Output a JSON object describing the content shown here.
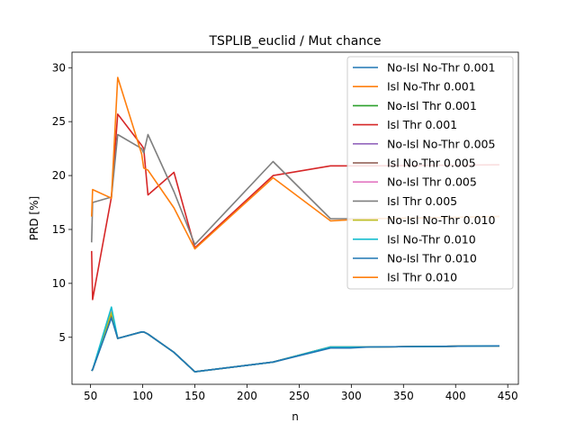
{
  "chart_data": {
    "type": "line",
    "title": "TSPLIB_euclid / Mut chance",
    "xlabel": "n",
    "ylabel": "PRD [%]",
    "xlim": [
      32.2,
      460.2
    ],
    "ylim": [
      0.64,
      31.44
    ],
    "xticks": [
      50,
      100,
      150,
      200,
      250,
      300,
      350,
      400,
      450
    ],
    "yticks": [
      5,
      10,
      15,
      20,
      25,
      30
    ],
    "grid": false,
    "legend_position": "top-right",
    "series": [
      {
        "name": "No-Isl No-Thr 0.001",
        "color": "#1f77b4",
        "x": [
          51,
          52,
          70,
          76,
          99,
          101,
          105,
          130,
          150,
          225,
          280,
          299,
          318,
          442
        ],
        "y": [
          1.9,
          2.0,
          7.0,
          4.9,
          5.5,
          5.5,
          5.3,
          3.6,
          1.8,
          2.7,
          4.1,
          4.1,
          4.1,
          4.2
        ]
      },
      {
        "name": "Isl No-Thr 0.001",
        "color": "#ff7f0e",
        "x": [
          51,
          52,
          70,
          76,
          99,
          101,
          105,
          130,
          150,
          225,
          280,
          299,
          318,
          442
        ],
        "y": [
          1.9,
          2.0,
          6.9,
          4.9,
          5.5,
          5.5,
          5.3,
          3.6,
          1.8,
          2.7,
          4.1,
          4.1,
          4.1,
          4.2
        ]
      },
      {
        "name": "No-Isl Thr 0.001",
        "color": "#2ca02c",
        "x": [
          51,
          52,
          70,
          76,
          99,
          101,
          105,
          130,
          150,
          225,
          280,
          299,
          318,
          442
        ],
        "y": [
          1.9,
          2.0,
          7.4,
          4.9,
          5.5,
          5.5,
          5.3,
          3.6,
          1.8,
          2.7,
          4.1,
          4.1,
          4.1,
          4.2
        ]
      },
      {
        "name": "Isl Thr 0.001",
        "color": "#d62728",
        "x": [
          51,
          52,
          70,
          76,
          99,
          101,
          105,
          130,
          150,
          225,
          280,
          299,
          318,
          442
        ],
        "y": [
          13.0,
          8.5,
          18.0,
          25.7,
          22.8,
          22.5,
          18.2,
          20.3,
          13.3,
          20.0,
          20.9,
          20.9,
          20.9,
          21.0
        ]
      },
      {
        "name": "No-Isl No-Thr 0.005",
        "color": "#9467bd",
        "x": [
          51,
          52,
          70,
          76,
          99,
          101,
          105,
          130,
          150,
          225,
          280,
          299,
          318,
          442
        ],
        "y": [
          1.9,
          2.0,
          7.2,
          4.9,
          5.5,
          5.5,
          5.3,
          3.6,
          1.8,
          2.7,
          4.1,
          4.1,
          4.1,
          4.2
        ]
      },
      {
        "name": "Isl No-Thr 0.005",
        "color": "#8c564b",
        "x": [
          51,
          52,
          70,
          76,
          99,
          101,
          105,
          130,
          150,
          225,
          280,
          299,
          318,
          442
        ],
        "y": [
          1.9,
          2.0,
          7.1,
          4.9,
          5.5,
          5.5,
          5.3,
          3.6,
          1.8,
          2.7,
          4.1,
          4.1,
          4.1,
          4.2
        ]
      },
      {
        "name": "No-Isl Thr 0.005",
        "color": "#e377c2",
        "x": [
          51,
          52,
          70,
          76,
          99,
          101,
          105,
          130,
          150,
          225,
          280,
          299,
          318,
          442
        ],
        "y": [
          1.9,
          2.0,
          7.5,
          4.9,
          5.5,
          5.5,
          5.3,
          3.6,
          1.8,
          2.7,
          4.1,
          4.1,
          4.1,
          4.2
        ]
      },
      {
        "name": "Isl Thr 0.005",
        "color": "#7f7f7f",
        "x": [
          51,
          52,
          70,
          76,
          99,
          101,
          105,
          130,
          150,
          225,
          280,
          299,
          318,
          442
        ],
        "y": [
          13.8,
          17.5,
          18.0,
          23.8,
          22.5,
          22.1,
          23.8,
          18.5,
          13.6,
          21.3,
          16.0,
          16.0,
          16.0,
          16.2
        ]
      },
      {
        "name": "No-Isl No-Thr 0.010",
        "color": "#bcbd22",
        "x": [
          51,
          52,
          70,
          76,
          99,
          101,
          105,
          130,
          150,
          225,
          280,
          299,
          318,
          442
        ],
        "y": [
          1.9,
          2.0,
          7.3,
          4.9,
          5.5,
          5.5,
          5.3,
          3.6,
          1.8,
          2.7,
          4.1,
          4.1,
          4.1,
          4.2
        ]
      },
      {
        "name": "Isl No-Thr 0.010",
        "color": "#17becf",
        "x": [
          51,
          52,
          70,
          76,
          99,
          101,
          105,
          130,
          150,
          225,
          280,
          299,
          318,
          442
        ],
        "y": [
          1.9,
          2.0,
          7.8,
          4.9,
          5.5,
          5.5,
          5.3,
          3.6,
          1.8,
          2.7,
          4.1,
          4.1,
          4.1,
          4.2
        ]
      },
      {
        "name": "No-Isl Thr 0.010",
        "color": "#1f77b4",
        "x": [
          51,
          52,
          70,
          76,
          99,
          101,
          105,
          130,
          150,
          225,
          280,
          299,
          318,
          442
        ],
        "y": [
          1.9,
          2.0,
          6.8,
          4.9,
          5.5,
          5.5,
          5.3,
          3.6,
          1.8,
          2.7,
          4.0,
          4.0,
          4.1,
          4.2
        ]
      },
      {
        "name": "Isl Thr 0.010",
        "color": "#ff7f0e",
        "x": [
          51,
          52,
          70,
          76,
          99,
          101,
          105,
          130,
          150,
          225,
          280,
          299,
          318,
          442
        ],
        "y": [
          16.2,
          18.7,
          17.9,
          29.1,
          22.0,
          20.7,
          20.5,
          17.0,
          13.2,
          19.8,
          15.8,
          15.9,
          16.0,
          16.2
        ]
      }
    ]
  }
}
